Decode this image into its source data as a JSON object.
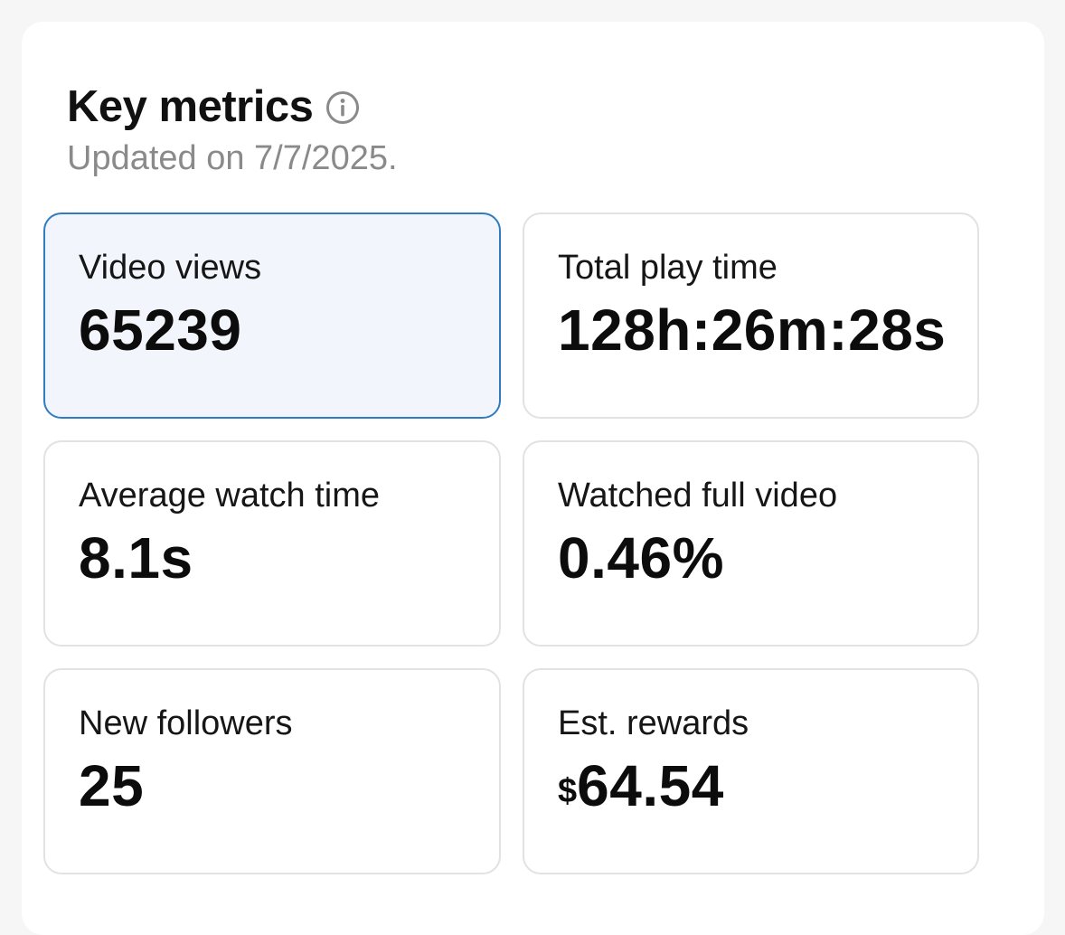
{
  "header": {
    "title": "Key metrics",
    "info_icon": "info-circle-icon",
    "subtitle": "Updated on 7/7/2025."
  },
  "metrics": [
    {
      "label": "Video views",
      "value": "65239",
      "selected": true
    },
    {
      "label": "Total play time",
      "value": "128h:26m:28s",
      "selected": false
    },
    {
      "label": "Average watch time",
      "value": "8.1s",
      "selected": false
    },
    {
      "label": "Watched full video",
      "value": "0.46%",
      "selected": false
    },
    {
      "label": "New followers",
      "value": "25",
      "selected": false
    },
    {
      "label": "Est. rewards",
      "currency_symbol": "$",
      "value": "64.54",
      "selected": false
    }
  ],
  "colors": {
    "selected_border": "#2f7cc1",
    "selected_background": "#f2f6fc",
    "card_border": "#e2e2e2",
    "subtitle_text": "#8a8a8a"
  }
}
